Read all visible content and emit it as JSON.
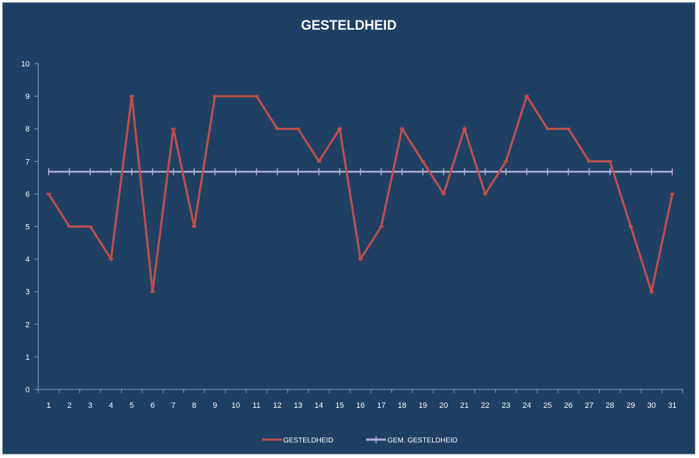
{
  "chart_data": {
    "type": "line",
    "title": "GESTELDHEID",
    "xlabel": "",
    "ylabel": "",
    "categories": [
      "1",
      "2",
      "3",
      "4",
      "5",
      "6",
      "7",
      "8",
      "9",
      "10",
      "11",
      "12",
      "13",
      "14",
      "15",
      "16",
      "17",
      "18",
      "19",
      "20",
      "21",
      "22",
      "23",
      "24",
      "25",
      "26",
      "27",
      "28",
      "29",
      "30",
      "31"
    ],
    "ylim": [
      0,
      10
    ],
    "yticks": [
      "0",
      "1",
      "2",
      "3",
      "4",
      "5",
      "6",
      "7",
      "8",
      "9",
      "10"
    ],
    "grid": false,
    "legend_position": "bottom",
    "series": [
      {
        "name": "GESTELDHEID",
        "color": "#c0504d",
        "values": [
          6,
          5,
          5,
          4,
          9,
          3,
          8,
          5,
          9,
          9,
          9,
          8,
          8,
          7,
          8,
          4,
          5,
          8,
          7,
          6,
          8,
          6,
          7,
          9,
          8,
          8,
          7,
          7,
          5,
          3,
          6
        ]
      },
      {
        "name": "GEM. GESTELDHEID",
        "color": "#b3b0d6",
        "values": [
          6.68,
          6.68,
          6.68,
          6.68,
          6.68,
          6.68,
          6.68,
          6.68,
          6.68,
          6.68,
          6.68,
          6.68,
          6.68,
          6.68,
          6.68,
          6.68,
          6.68,
          6.68,
          6.68,
          6.68,
          6.68,
          6.68,
          6.68,
          6.68,
          6.68,
          6.68,
          6.68,
          6.68,
          6.68,
          6.68,
          6.68
        ]
      }
    ]
  }
}
